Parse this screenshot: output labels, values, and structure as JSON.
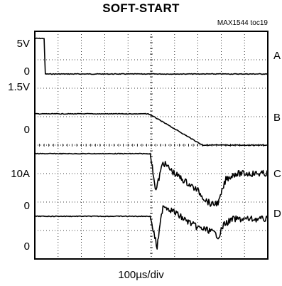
{
  "chart_data": {
    "type": "line",
    "title": "SOFT-START",
    "subtitle": "MAX1544 toc19",
    "xlabel": "100µs/div",
    "x_divisions": 10,
    "y_divisions": 8,
    "grid": true,
    "left_labels": [
      "5V",
      "0",
      "1.5V",
      "0",
      "10A",
      "0",
      "0"
    ],
    "right_labels": [
      "A",
      "B",
      "C",
      "D"
    ],
    "series": [
      {
        "name": "A",
        "x": [
          0,
          0.4,
          0.45,
          10
        ],
        "y": [
          0.25,
          0.25,
          1.5,
          1.5
        ]
      },
      {
        "name": "B",
        "x": [
          0,
          4.85,
          5.0,
          7.2,
          10
        ],
        "y": [
          2.9,
          2.9,
          2.95,
          4.0,
          4.0
        ]
      },
      {
        "name": "C",
        "x": [
          0,
          4.95,
          5.2,
          5.5,
          6.0,
          6.5,
          7.0,
          7.3,
          7.6,
          7.9,
          8.2,
          8.6,
          10
        ],
        "y": [
          4.3,
          4.3,
          5.6,
          4.6,
          5.0,
          5.3,
          5.6,
          5.9,
          6.1,
          6.0,
          5.2,
          5.0,
          5.0
        ]
      },
      {
        "name": "D",
        "x": [
          0,
          4.95,
          5.25,
          5.5,
          5.9,
          6.4,
          7.0,
          7.5,
          7.9,
          8.1,
          8.5,
          10
        ],
        "y": [
          6.5,
          6.5,
          7.6,
          6.1,
          6.3,
          6.6,
          6.9,
          7.0,
          7.2,
          6.8,
          6.6,
          6.6
        ]
      }
    ],
    "colors": {
      "trace": "#000000",
      "grid": "#000000",
      "background": "#ffffff"
    }
  }
}
